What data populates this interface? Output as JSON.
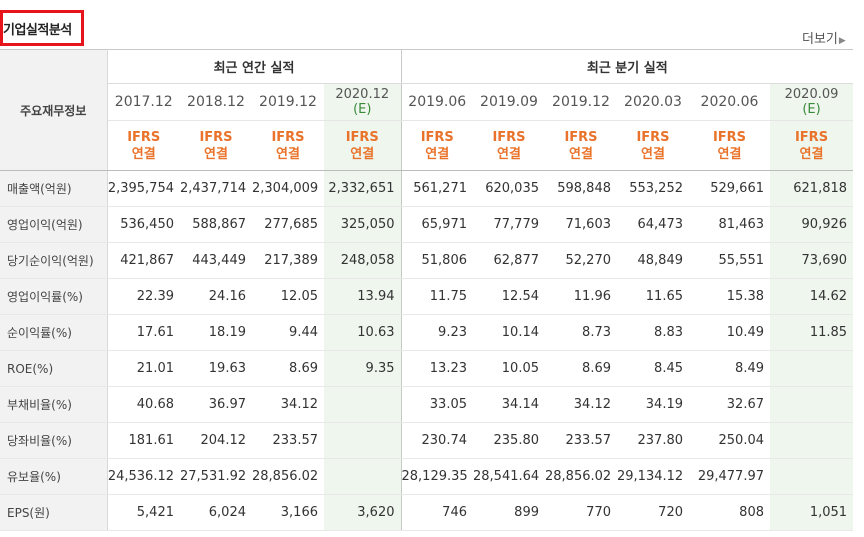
{
  "title": "기업실적분석",
  "more_label": "더보기",
  "more_icon": "chevron-right-icon",
  "header": {
    "label_column": "주요재무정보",
    "annual_group": "최근 연간 실적",
    "quarter_group": "최근 분기 실적",
    "annual_periods": [
      "2017.12",
      "2018.12",
      "2019.12",
      "2020.12"
    ],
    "annual_est": [
      "",
      "",
      "",
      "(E)"
    ],
    "quarter_periods": [
      "2019.06",
      "2019.09",
      "2019.12",
      "2020.03",
      "2020.06",
      "2020.09"
    ],
    "quarter_est": [
      "",
      "",
      "",
      "",
      "",
      "(E)"
    ],
    "ifrs": "IFRS",
    "consolidated": "연결"
  },
  "rows": [
    {
      "label": "매출액(억원)",
      "values": [
        "2,395,754",
        "2,437,714",
        "2,304,009",
        "2,332,651",
        "561,271",
        "620,035",
        "598,848",
        "553,252",
        "529,661",
        "621,818"
      ]
    },
    {
      "label": "영업이익(억원)",
      "values": [
        "536,450",
        "588,867",
        "277,685",
        "325,050",
        "65,971",
        "77,779",
        "71,603",
        "64,473",
        "81,463",
        "90,926"
      ]
    },
    {
      "label": "당기순이익(억원)",
      "values": [
        "421,867",
        "443,449",
        "217,389",
        "248,058",
        "51,806",
        "62,877",
        "52,270",
        "48,849",
        "55,551",
        "73,690"
      ]
    },
    {
      "label": "영업이익률(%)",
      "values": [
        "22.39",
        "24.16",
        "12.05",
        "13.94",
        "11.75",
        "12.54",
        "11.96",
        "11.65",
        "15.38",
        "14.62"
      ]
    },
    {
      "label": "순이익률(%)",
      "values": [
        "17.61",
        "18.19",
        "9.44",
        "10.63",
        "9.23",
        "10.14",
        "8.73",
        "8.83",
        "10.49",
        "11.85"
      ]
    },
    {
      "label": "ROE(%)",
      "values": [
        "21.01",
        "19.63",
        "8.69",
        "9.35",
        "13.23",
        "10.05",
        "8.69",
        "8.45",
        "8.49",
        ""
      ]
    },
    {
      "label": "부채비율(%)",
      "values": [
        "40.68",
        "36.97",
        "34.12",
        "",
        "33.05",
        "34.14",
        "34.12",
        "34.19",
        "32.67",
        ""
      ]
    },
    {
      "label": "당좌비율(%)",
      "values": [
        "181.61",
        "204.12",
        "233.57",
        "",
        "230.74",
        "235.80",
        "233.57",
        "237.80",
        "250.04",
        ""
      ]
    },
    {
      "label": "유보율(%)",
      "values": [
        "24,536.12",
        "27,531.92",
        "28,856.02",
        "",
        "28,129.35",
        "28,541.64",
        "28,856.02",
        "29,134.12",
        "29,477.97",
        ""
      ]
    },
    {
      "label": "EPS(원)",
      "values": [
        "5,421",
        "6,024",
        "3,166",
        "3,620",
        "746",
        "899",
        "770",
        "720",
        "808",
        "1,051"
      ]
    }
  ],
  "colors": {
    "highlight_border": "#e8141c",
    "ifrs_text": "#e9732a",
    "estimate_bg": "#eef6ee",
    "estimate_text": "#3a8a3a"
  }
}
